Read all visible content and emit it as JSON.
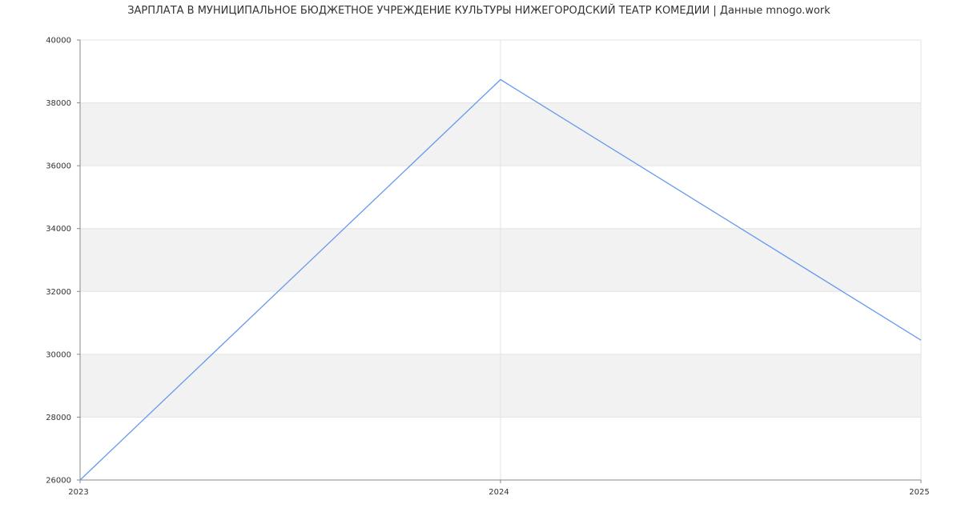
{
  "chart_data": {
    "type": "line",
    "title": "ЗАРПЛАТА В МУНИЦИПАЛЬНОЕ БЮДЖЕТНОЕ УЧРЕЖДЕНИЕ КУЛЬТУРЫ НИЖЕГОРОДСКИЙ ТЕАТР КОМЕДИИ | Данные mnogo.work",
    "xlabel": "",
    "ylabel": "",
    "x": [
      "2023",
      "2024",
      "2025"
    ],
    "series": [
      {
        "values": [
          26000,
          38740,
          30450
        ],
        "color": "#6699ee"
      }
    ],
    "ylim": [
      26000,
      40000
    ],
    "yticks": [
      26000,
      28000,
      30000,
      32000,
      34000,
      36000,
      38000,
      40000
    ],
    "grid": true,
    "band_color": "#f2f2f2"
  }
}
